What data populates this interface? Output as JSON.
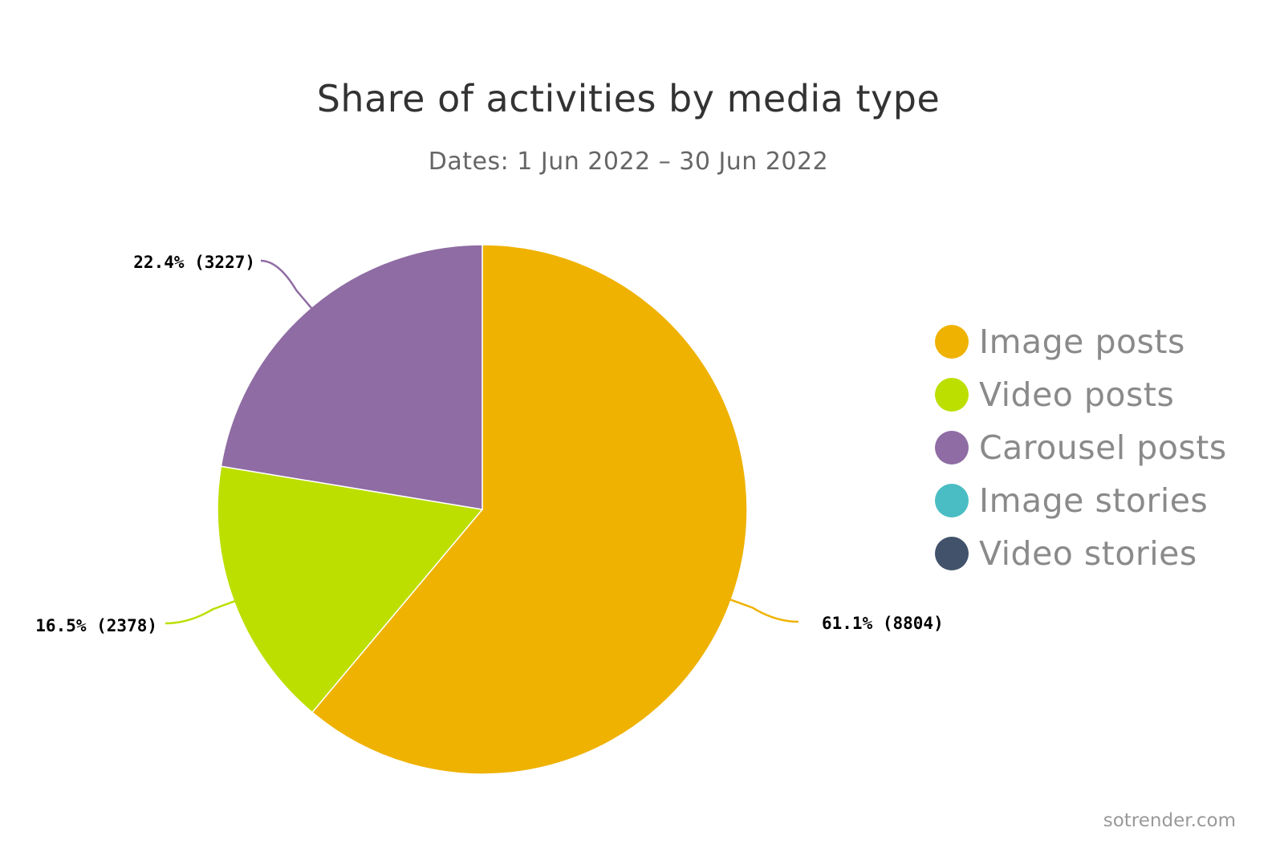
{
  "chart_data": {
    "type": "pie",
    "title": "Share of activities by media type",
    "subtitle": "Dates: 1 Jun 2022 – 30 Jun 2022",
    "legend_position": "right",
    "slices": [
      {
        "name": "Image posts",
        "value": 8804,
        "percent": 61.1,
        "label": "61.1% (8804)",
        "color": "#efb200"
      },
      {
        "name": "Video posts",
        "value": 2378,
        "percent": 16.5,
        "label": "16.5% (2378)",
        "color": "#bcdf00"
      },
      {
        "name": "Carousel posts",
        "value": 3227,
        "percent": 22.4,
        "label": "22.4% (3227)",
        "color": "#8f6ca3"
      },
      {
        "name": "Image stories",
        "value": 0,
        "percent": 0,
        "label": "",
        "color": "#4abdc4"
      },
      {
        "name": "Video stories",
        "value": 0,
        "percent": 0,
        "label": "",
        "color": "#41526a"
      }
    ]
  },
  "credit": "sotrender.com"
}
